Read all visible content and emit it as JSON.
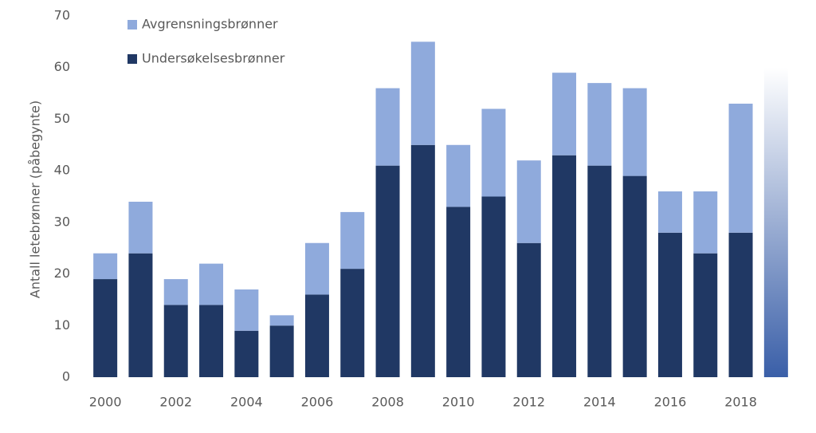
{
  "chart_data": {
    "type": "stacked_bar",
    "y_label": "Antall letebrønner (påbegynte)",
    "categories": [
      "2000",
      null,
      "2002",
      null,
      "2004",
      null,
      "2006",
      null,
      "2008",
      null,
      "2010",
      null,
      "2012",
      null,
      "2014",
      null,
      "2016",
      null,
      "2018",
      null
    ],
    "series": [
      {
        "name": "Undersøkelsesbrønner",
        "color": "#203864",
        "values": [
          19,
          24,
          14,
          14,
          9,
          10,
          16,
          21,
          41,
          45,
          33,
          35,
          26,
          43,
          41,
          39,
          28,
          24,
          28,
          null
        ]
      },
      {
        "name": "Avgrensningsbrønner",
        "color": "#8faadc",
        "values": [
          5,
          10,
          5,
          8,
          8,
          2,
          10,
          11,
          15,
          20,
          12,
          17,
          16,
          16,
          16,
          17,
          8,
          12,
          25,
          null
        ]
      },
      {
        "color": [
          "#3a5fa8",
          "#ffffff"
        ],
        "values": [
          null,
          null,
          null,
          null,
          null,
          null,
          null,
          null,
          null,
          null,
          null,
          null,
          null,
          null,
          null,
          null,
          null,
          null,
          null,
          60
        ]
      }
    ],
    "ylim": [
      0,
      70
    ],
    "yticks": [
      0,
      10,
      20,
      30,
      40,
      50,
      60,
      70
    ],
    "grid": false,
    "legend": "top-left"
  }
}
